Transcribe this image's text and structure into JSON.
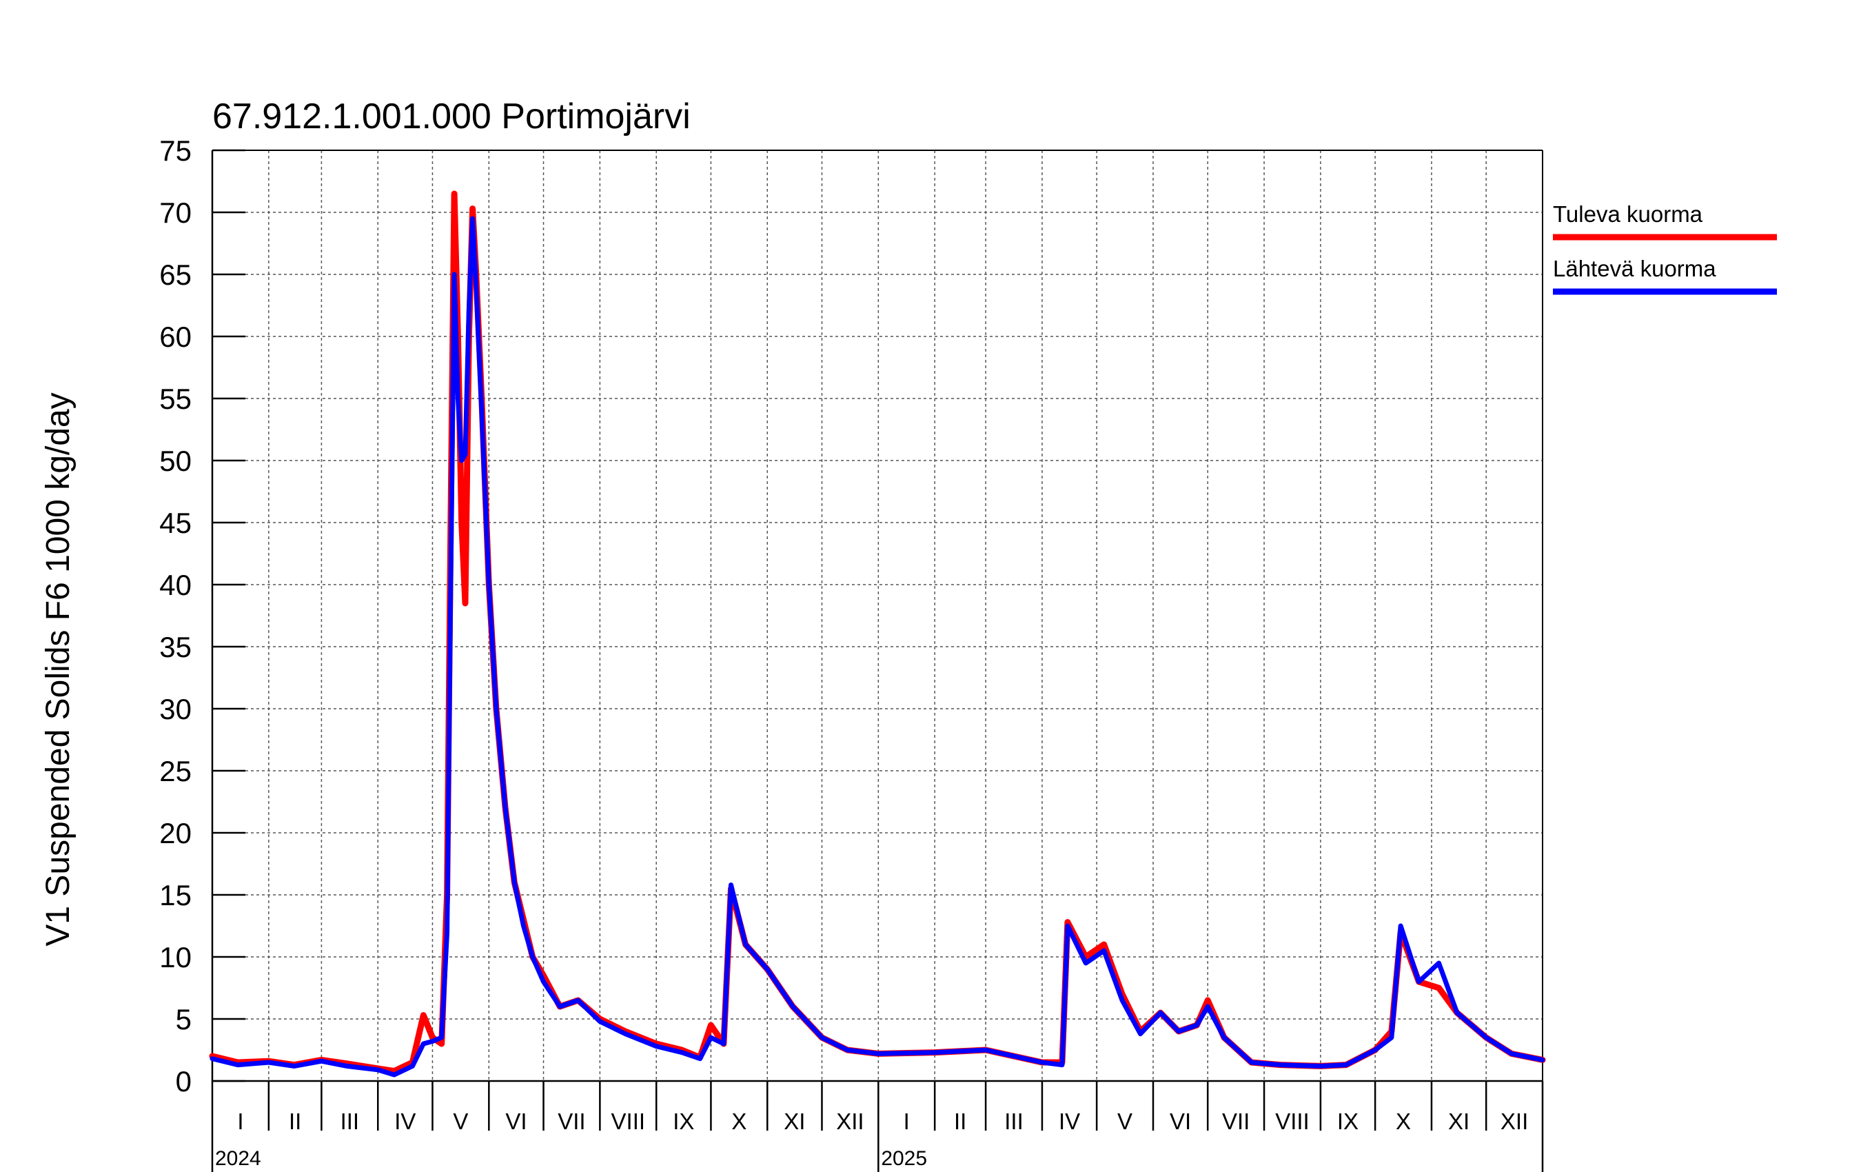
{
  "chart_data": {
    "type": "line",
    "title": "67.912.1.001.000 Portimojärvi",
    "ylabel": "V1 Suspended Solids F6 1000 kg/day",
    "xlabel": "",
    "ylim": [
      0,
      75
    ],
    "yticks": [
      0,
      5,
      10,
      15,
      20,
      25,
      30,
      35,
      40,
      45,
      50,
      55,
      60,
      65,
      70,
      75
    ],
    "x_range": [
      "2024-01-01",
      "2026-01-01"
    ],
    "grid": true,
    "legend_position": "right",
    "months": [
      "I",
      "II",
      "III",
      "IV",
      "V",
      "VI",
      "VII",
      "VIII",
      "IX",
      "X",
      "XI",
      "XII",
      "I",
      "II",
      "III",
      "IV",
      "V",
      "VI",
      "VII",
      "VIII",
      "IX",
      "X",
      "XI",
      "XII"
    ],
    "years": [
      "2024",
      "2025"
    ],
    "series": [
      {
        "name": "Tuleva kuorma",
        "color": "#ff0000",
        "points": [
          [
            "2024-01-01",
            2.0
          ],
          [
            "2024-01-15",
            1.5
          ],
          [
            "2024-02-01",
            1.6
          ],
          [
            "2024-02-15",
            1.3
          ],
          [
            "2024-03-01",
            1.7
          ],
          [
            "2024-03-15",
            1.4
          ],
          [
            "2024-04-01",
            1.0
          ],
          [
            "2024-04-10",
            0.8
          ],
          [
            "2024-04-20",
            1.5
          ],
          [
            "2024-04-26",
            5.3
          ],
          [
            "2024-05-01",
            3.5
          ],
          [
            "2024-05-06",
            3.0
          ],
          [
            "2024-05-09",
            15.0
          ],
          [
            "2024-05-11",
            45.0
          ],
          [
            "2024-05-13",
            71.5
          ],
          [
            "2024-05-15",
            60.0
          ],
          [
            "2024-05-17",
            45.0
          ],
          [
            "2024-05-19",
            38.5
          ],
          [
            "2024-05-21",
            60.0
          ],
          [
            "2024-05-23",
            70.3
          ],
          [
            "2024-05-25",
            65.0
          ],
          [
            "2024-05-28",
            55.0
          ],
          [
            "2024-06-01",
            40.0
          ],
          [
            "2024-06-05",
            30.0
          ],
          [
            "2024-06-10",
            22.0
          ],
          [
            "2024-06-15",
            16.0
          ],
          [
            "2024-06-20",
            13.0
          ],
          [
            "2024-06-25",
            10.0
          ],
          [
            "2024-07-01",
            8.5
          ],
          [
            "2024-07-10",
            6.0
          ],
          [
            "2024-07-20",
            6.5
          ],
          [
            "2024-08-01",
            5.0
          ],
          [
            "2024-08-15",
            4.0
          ],
          [
            "2024-09-01",
            3.0
          ],
          [
            "2024-09-15",
            2.5
          ],
          [
            "2024-09-25",
            1.9
          ],
          [
            "2024-10-01",
            4.5
          ],
          [
            "2024-10-08",
            3.0
          ],
          [
            "2024-10-12",
            15.5
          ],
          [
            "2024-10-20",
            11.0
          ],
          [
            "2024-11-01",
            9.0
          ],
          [
            "2024-11-15",
            6.0
          ],
          [
            "2024-12-01",
            3.5
          ],
          [
            "2024-12-15",
            2.5
          ],
          [
            "2025-01-01",
            2.2
          ],
          [
            "2025-02-01",
            2.3
          ],
          [
            "2025-03-01",
            2.5
          ],
          [
            "2025-04-01",
            1.5
          ],
          [
            "2025-04-12",
            1.5
          ],
          [
            "2025-04-15",
            12.8
          ],
          [
            "2025-04-25",
            10.0
          ],
          [
            "2025-05-05",
            11.0
          ],
          [
            "2025-05-15",
            7.0
          ],
          [
            "2025-05-25",
            4.0
          ],
          [
            "2025-06-05",
            5.5
          ],
          [
            "2025-06-15",
            4.0
          ],
          [
            "2025-06-25",
            4.5
          ],
          [
            "2025-07-01",
            6.5
          ],
          [
            "2025-07-10",
            3.5
          ],
          [
            "2025-07-25",
            1.5
          ],
          [
            "2025-08-10",
            1.3
          ],
          [
            "2025-09-01",
            1.2
          ],
          [
            "2025-09-15",
            1.3
          ],
          [
            "2025-10-01",
            2.5
          ],
          [
            "2025-10-10",
            4.0
          ],
          [
            "2025-10-15",
            12.0
          ],
          [
            "2025-10-25",
            8.0
          ],
          [
            "2025-11-05",
            7.5
          ],
          [
            "2025-11-15",
            5.5
          ],
          [
            "2025-12-01",
            3.5
          ],
          [
            "2025-12-15",
            2.2
          ],
          [
            "2026-01-01",
            1.7
          ]
        ]
      },
      {
        "name": "Lähtevä kuorma",
        "color": "#0000ff",
        "points": [
          [
            "2024-01-01",
            1.8
          ],
          [
            "2024-01-15",
            1.3
          ],
          [
            "2024-02-01",
            1.5
          ],
          [
            "2024-02-15",
            1.2
          ],
          [
            "2024-03-01",
            1.6
          ],
          [
            "2024-03-15",
            1.2
          ],
          [
            "2024-04-01",
            0.9
          ],
          [
            "2024-04-10",
            0.5
          ],
          [
            "2024-04-20",
            1.2
          ],
          [
            "2024-04-26",
            3.0
          ],
          [
            "2024-05-01",
            3.2
          ],
          [
            "2024-05-06",
            3.5
          ],
          [
            "2024-05-09",
            12.0
          ],
          [
            "2024-05-11",
            40.0
          ],
          [
            "2024-05-13",
            65.0
          ],
          [
            "2024-05-15",
            55.0
          ],
          [
            "2024-05-17",
            50.0
          ],
          [
            "2024-05-19",
            50.5
          ],
          [
            "2024-05-21",
            62.0
          ],
          [
            "2024-05-23",
            69.5
          ],
          [
            "2024-05-25",
            64.0
          ],
          [
            "2024-05-28",
            54.0
          ],
          [
            "2024-06-01",
            40.0
          ],
          [
            "2024-06-05",
            30.0
          ],
          [
            "2024-06-10",
            22.0
          ],
          [
            "2024-06-15",
            16.0
          ],
          [
            "2024-06-20",
            12.5
          ],
          [
            "2024-06-25",
            10.0
          ],
          [
            "2024-07-01",
            8.0
          ],
          [
            "2024-07-10",
            6.0
          ],
          [
            "2024-07-20",
            6.5
          ],
          [
            "2024-08-01",
            4.8
          ],
          [
            "2024-08-15",
            3.8
          ],
          [
            "2024-09-01",
            2.8
          ],
          [
            "2024-09-15",
            2.3
          ],
          [
            "2024-09-25",
            1.8
          ],
          [
            "2024-10-01",
            3.5
          ],
          [
            "2024-10-08",
            3.0
          ],
          [
            "2024-10-12",
            15.8
          ],
          [
            "2024-10-20",
            11.0
          ],
          [
            "2024-11-01",
            9.0
          ],
          [
            "2024-11-15",
            6.0
          ],
          [
            "2024-12-01",
            3.5
          ],
          [
            "2024-12-15",
            2.5
          ],
          [
            "2025-01-01",
            2.2
          ],
          [
            "2025-02-01",
            2.3
          ],
          [
            "2025-03-01",
            2.5
          ],
          [
            "2025-04-01",
            1.5
          ],
          [
            "2025-04-12",
            1.3
          ],
          [
            "2025-04-15",
            12.5
          ],
          [
            "2025-04-25",
            9.5
          ],
          [
            "2025-05-05",
            10.5
          ],
          [
            "2025-05-15",
            6.5
          ],
          [
            "2025-05-25",
            3.8
          ],
          [
            "2025-06-05",
            5.5
          ],
          [
            "2025-06-15",
            4.0
          ],
          [
            "2025-06-25",
            4.5
          ],
          [
            "2025-07-01",
            6.0
          ],
          [
            "2025-07-10",
            3.5
          ],
          [
            "2025-07-25",
            1.5
          ],
          [
            "2025-08-10",
            1.3
          ],
          [
            "2025-09-01",
            1.2
          ],
          [
            "2025-09-15",
            1.3
          ],
          [
            "2025-10-01",
            2.5
          ],
          [
            "2025-10-10",
            3.5
          ],
          [
            "2025-10-15",
            12.5
          ],
          [
            "2025-10-25",
            8.0
          ],
          [
            "2025-11-05",
            9.5
          ],
          [
            "2025-11-15",
            5.5
          ],
          [
            "2025-12-01",
            3.5
          ],
          [
            "2025-12-15",
            2.2
          ],
          [
            "2026-01-01",
            1.7
          ]
        ]
      }
    ]
  }
}
